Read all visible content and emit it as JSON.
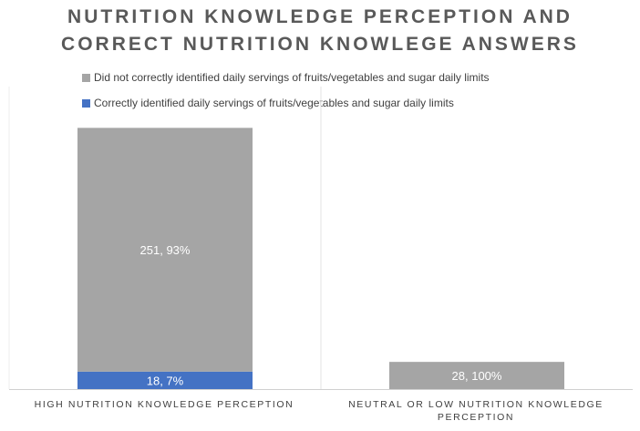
{
  "chart_data": {
    "type": "bar",
    "stacked": true,
    "title": "NUTRITION KNOWLEDGE PERCEPTION AND CORRECT NUTRITION KNOWLEGE ANSWERS",
    "title_lines": [
      "NUTRITION KNOWLEDGE PERCEPTION AND",
      "CORRECT NUTRITION KNOWLEGE ANSWERS"
    ],
    "categories": [
      "HIGH NUTRITION KNOWLEDGE PERCEPTION",
      "NEUTRAL OR LOW NUTRITION KNOWLEDGE PERCEPTION"
    ],
    "category_lines": [
      [
        "HIGH NUTRITION KNOWLEDGE PERCEPTION"
      ],
      [
        "NEUTRAL OR LOW NUTRITION KNOWLEDGE",
        "PERCEPTION"
      ]
    ],
    "series": [
      {
        "name": "Correctly identified daily servings of fruits/vegetables and sugar daily limits",
        "color": "#4472C4",
        "values": [
          18,
          0
        ],
        "labels": [
          "18, 7%",
          ""
        ]
      },
      {
        "name": "Did not correctly identified daily servings of fruits/vegetables and sugar daily limits",
        "color": "#A5A5A5",
        "values": [
          251,
          28
        ],
        "labels": [
          "251, 93%",
          "28, 100%"
        ]
      }
    ],
    "legend_order": [
      1,
      0
    ],
    "legend_position": "top",
    "ylim": [
      0,
      300
    ],
    "grid": false
  }
}
